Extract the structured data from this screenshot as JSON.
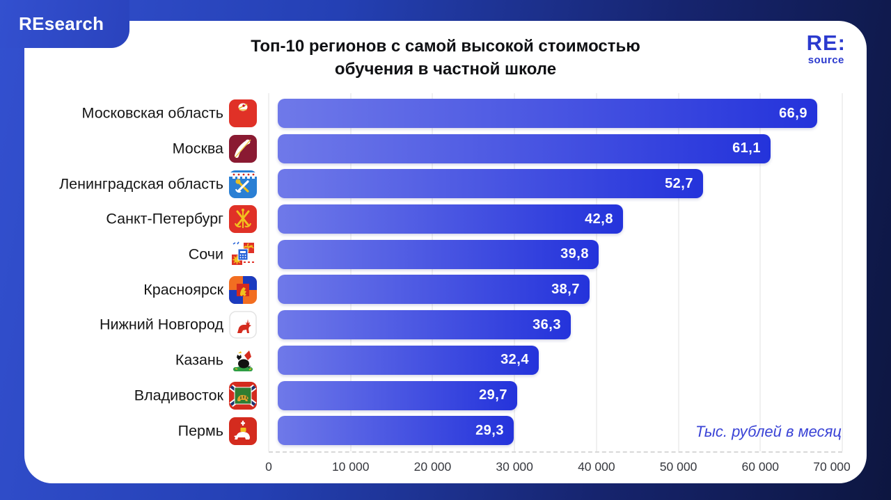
{
  "header": {
    "brand": "REsearch",
    "logo_top": "RE:",
    "logo_bottom": "source"
  },
  "colors": {
    "background_left": "#3350cf",
    "background_right": "#0d1640",
    "card": "#ffffff",
    "bar_gradient_start": "#6f79e9",
    "bar_gradient_end": "#2433db",
    "accent_blue": "#3a43d6",
    "title_text": "#101114",
    "brand_text": "#ffffff",
    "logo_blue": "#2b3ace"
  },
  "chart_data": {
    "type": "bar",
    "orientation": "horizontal",
    "title": "Топ-10 регионов с самой высокой стоимостью обучения в частной школе",
    "title_lines": [
      "Топ-10 регионов с самой высокой стоимостью",
      "обучения в частной школе"
    ],
    "unit_label": "Тыс. рублей в месяц",
    "categories": [
      "Московская область",
      "Москва",
      "Ленинградская область",
      "Санкт-Петербург",
      "Сочи",
      "Красноярск",
      "Нижний Новгород",
      "Казань",
      "Владивосток",
      "Пермь"
    ],
    "values": [
      66.9,
      61.1,
      52.7,
      42.8,
      39.8,
      38.7,
      36.3,
      32.4,
      29.7,
      29.3
    ],
    "value_labels": [
      "66,9",
      "61,1",
      "52,7",
      "42,8",
      "39,8",
      "38,7",
      "36,3",
      "32,4",
      "29,7",
      "29,3"
    ],
    "values_unit": "тыс. рублей в месяц",
    "icons": [
      "moscow-oblast-crest-icon",
      "moscow-crest-icon",
      "leningrad-oblast-crest-icon",
      "saint-petersburg-crest-icon",
      "sochi-crest-icon",
      "krasnoyarsk-crest-icon",
      "nizhny-novgorod-crest-icon",
      "kazan-crest-icon",
      "vladivostok-crest-icon",
      "perm-crest-icon"
    ],
    "xlim": [
      0,
      70000
    ],
    "x_ticks": [
      "0",
      "10 000",
      "20 000",
      "30 000",
      "40 000",
      "50 000",
      "60 000",
      "70 000"
    ],
    "grid": true,
    "legend": false
  }
}
